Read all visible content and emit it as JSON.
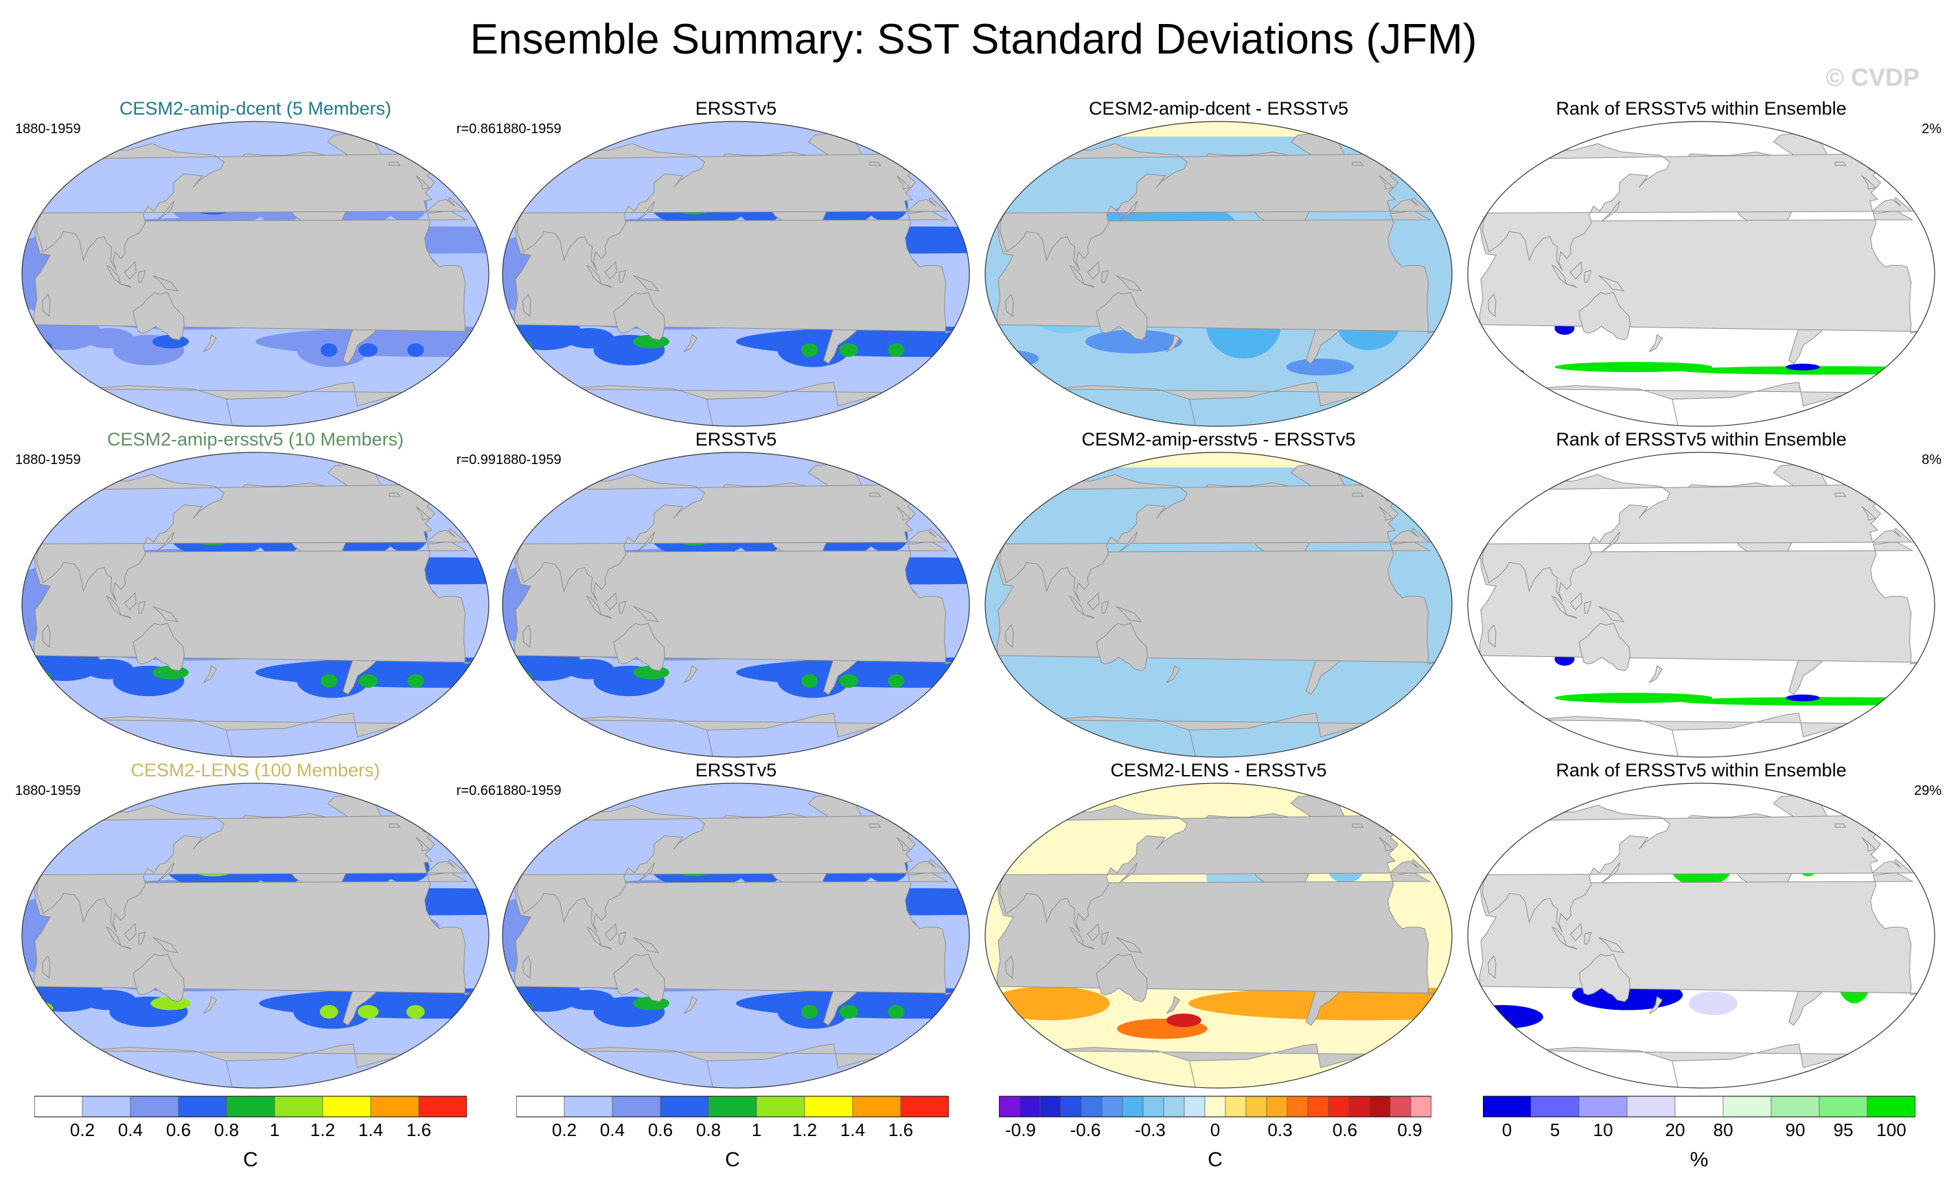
{
  "header": {
    "title": "Ensemble Summary: SST Standard Deviations (JFM)",
    "watermark": "© CVDP"
  },
  "colors": {
    "land": "#c8c8c8",
    "rank_land": "#dcdcdc",
    "coast": "#8c8c8c"
  },
  "rows": [
    {
      "panels": [
        {
          "title": "CESM2-amip-dcent (5 Members)",
          "title_color": "#1f7a8c",
          "period": "1880-1959",
          "corner": "r=0.86",
          "kind": "sd",
          "intensity": 0.85
        },
        {
          "title": "ERSSTv5",
          "title_color": "#000000",
          "period": "1880-1959",
          "corner": "",
          "kind": "sd",
          "intensity": 1.0
        },
        {
          "title": "CESM2-amip-dcent - ERSSTv5",
          "title_color": "#000000",
          "period": "",
          "corner": "",
          "kind": "diff",
          "bias": -0.45
        },
        {
          "title": "Rank of ERSSTv5 within Ensemble",
          "title_color": "#000000",
          "period": "",
          "corner": "2%",
          "kind": "rank",
          "fill": 0.02
        }
      ]
    },
    {
      "panels": [
        {
          "title": "CESM2-amip-ersstv5 (10 Members)",
          "title_color": "#5f8f5f",
          "period": "1880-1959",
          "corner": "r=0.99",
          "kind": "sd",
          "intensity": 1.0
        },
        {
          "title": "ERSSTv5",
          "title_color": "#000000",
          "period": "1880-1959",
          "corner": "",
          "kind": "sd",
          "intensity": 1.0
        },
        {
          "title": "CESM2-amip-ersstv5 - ERSSTv5",
          "title_color": "#000000",
          "period": "",
          "corner": "",
          "kind": "diff",
          "bias": -0.1
        },
        {
          "title": "Rank of ERSSTv5 within Ensemble",
          "title_color": "#000000",
          "period": "",
          "corner": "8%",
          "kind": "rank",
          "fill": 0.08
        }
      ]
    },
    {
      "panels": [
        {
          "title": "CESM2-LENS (100 Members)",
          "title_color": "#c8b860",
          "period": "1880-1959",
          "corner": "r=0.66",
          "kind": "sd",
          "intensity": 1.25
        },
        {
          "title": "ERSSTv5",
          "title_color": "#000000",
          "period": "1880-1959",
          "corner": "",
          "kind": "sd",
          "intensity": 1.0
        },
        {
          "title": "CESM2-LENS - ERSSTv5",
          "title_color": "#000000",
          "period": "",
          "corner": "",
          "kind": "diff",
          "bias": 0.4
        },
        {
          "title": "Rank of ERSSTv5 within Ensemble",
          "title_color": "#000000",
          "period": "",
          "corner": "29%",
          "kind": "rank",
          "fill": 0.29
        }
      ]
    }
  ],
  "chart_data": {
    "type": "heatmap",
    "projection": "Robinson (Pacific-centered)",
    "colorbars": [
      {
        "units": "C",
        "tick_labels": [
          "0.2",
          "0.4",
          "0.6",
          "0.8",
          "1",
          "1.2",
          "1.4",
          "1.6"
        ],
        "boundaries": [
          0.2,
          0.4,
          0.6,
          0.8,
          1.0,
          1.2,
          1.4,
          1.6
        ],
        "colors": [
          "#ffffff",
          "#b4c8ff",
          "#7d96f0",
          "#2864f0",
          "#14b432",
          "#96e61e",
          "#ffff00",
          "#ffa000",
          "#ff2814"
        ]
      },
      {
        "units": "C",
        "tick_labels": [
          "0.2",
          "0.4",
          "0.6",
          "0.8",
          "1",
          "1.2",
          "1.4",
          "1.6"
        ],
        "boundaries": [
          0.2,
          0.4,
          0.6,
          0.8,
          1.0,
          1.2,
          1.4,
          1.6
        ],
        "colors": [
          "#ffffff",
          "#b4c8ff",
          "#7d96f0",
          "#2864f0",
          "#14b432",
          "#96e61e",
          "#ffff00",
          "#ffa000",
          "#ff2814"
        ]
      },
      {
        "units": "C",
        "tick_labels": [
          "-0.9",
          "-0.6",
          "-0.3",
          "0",
          "0.3",
          "0.6",
          "0.9"
        ],
        "boundaries": [
          -1.0,
          -0.9,
          -0.8,
          -0.7,
          -0.6,
          -0.5,
          -0.4,
          -0.3,
          -0.2,
          -0.1,
          0,
          0.1,
          0.2,
          0.3,
          0.4,
          0.5,
          0.6,
          0.7,
          0.8,
          0.9,
          1.0
        ],
        "colors": [
          "#7814dc",
          "#3c14dc",
          "#1e28d2",
          "#2850e6",
          "#3c78e6",
          "#5a96f0",
          "#50b4f0",
          "#82c8f0",
          "#a0d2f0",
          "#c8e6fa",
          "#fffac8",
          "#ffe678",
          "#ffc83c",
          "#ffaa1e",
          "#ff7814",
          "#ff5014",
          "#f02814",
          "#d21e1e",
          "#b41414",
          "#e0505a",
          "#ffa0a5"
        ]
      },
      {
        "units": "%",
        "tick_labels": [
          "0",
          "5",
          "10",
          "20",
          "80",
          "90",
          "95",
          "100"
        ],
        "colors": [
          "#0000e6",
          "#6464ff",
          "#a0a0ff",
          "#dcdcfa",
          "#ffffff",
          "#dcfadc",
          "#aaf0aa",
          "#82f082",
          "#00e600"
        ]
      }
    ]
  }
}
